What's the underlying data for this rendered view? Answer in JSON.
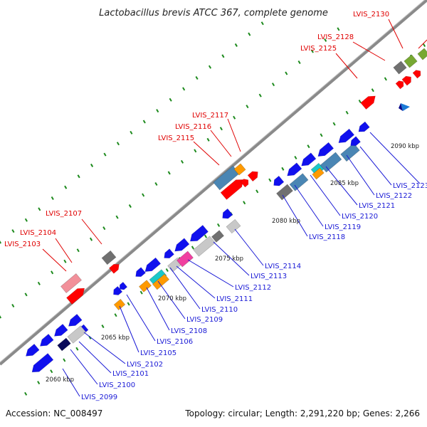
{
  "title": "Lactobacillus brevis ATCC 367, complete genome",
  "footer": {
    "accession": "Accession: NC_008497",
    "summary": "Topology: circular; Length: 2,291,220 bp; Genes: 2,266"
  },
  "colors": {
    "red": "#ff0000",
    "blue": "#1010ee",
    "steel": "#4a86b4",
    "gray": "#707070",
    "lightgray": "#c8c8c8",
    "orange": "#ff9a00",
    "pink": "#f2909a",
    "magenta": "#f040a0",
    "cyan": "#1ac8c8",
    "olive": "#77a832",
    "darknavy": "#0a0a5a",
    "dotgreen": "#1d8a1d",
    "backbone": "#8a8a8a",
    "label_red": "#e00000",
    "label_blue": "#1a1ad6"
  },
  "kbp_ticks": [
    "2060 kbp",
    "2065 kbp",
    "2070 kbp",
    "2075 kbp",
    "2080 kbp",
    "2085 kbp",
    "2090 kbp"
  ],
  "labels_upper": [
    "LVIS_2103",
    "LVIS_2104",
    "LVIS_2107",
    "LVIS_2115",
    "LVIS_2116",
    "LVIS_2117",
    "LVIS_2125",
    "LVIS_2128",
    "LVIS_2130"
  ],
  "labels_lower": [
    "LVIS_2099",
    "LVIS_2100",
    "LVIS_2101",
    "LVIS_2102",
    "LVIS_2105",
    "LVIS_2106",
    "LVIS_2108",
    "LVIS_2109",
    "LVIS_2110",
    "LVIS_2111",
    "LVIS_2112",
    "LVIS_2113",
    "LVIS_2114",
    "LVIS_2118",
    "LVIS_2119",
    "LVIS_2120",
    "LVIS_2121",
    "LVIS_2122",
    "LVIS_2123"
  ]
}
